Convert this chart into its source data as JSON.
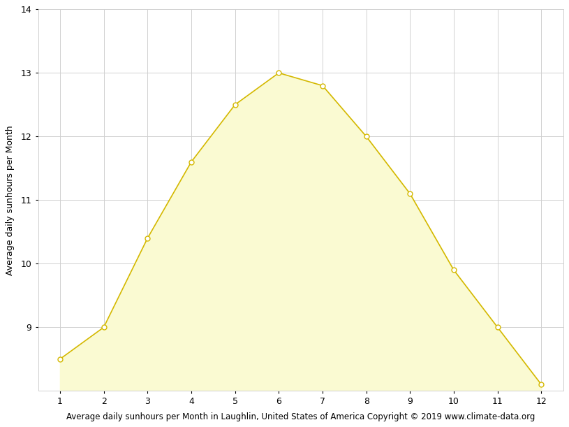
{
  "x": [
    1,
    2,
    3,
    4,
    5,
    6,
    7,
    8,
    9,
    10,
    11,
    12
  ],
  "y": [
    8.5,
    9.0,
    10.4,
    11.6,
    12.5,
    13.0,
    12.8,
    12.0,
    11.1,
    9.9,
    9.0,
    8.1
  ],
  "fill_color": "#fafad2",
  "line_color": "#d4b800",
  "marker_face_color": "#ffffff",
  "marker_edge_color": "#d4b800",
  "ylabel": "Average daily sunhours per Month",
  "xlabel": "Average daily sunhours per Month in Laughlin, United States of America Copyright © 2019 www.climate-data.org",
  "ylim_bottom": 8.0,
  "ylim_top": 14.0,
  "xlim_left": 0.5,
  "xlim_right": 12.5,
  "yticks": [
    9,
    10,
    11,
    12,
    13,
    14
  ],
  "xticks": [
    1,
    2,
    3,
    4,
    5,
    6,
    7,
    8,
    9,
    10,
    11,
    12
  ],
  "plot_background": "#ffffff",
  "grid_color": "#d0d0d0",
  "axis_fontsize": 9,
  "xlabel_fontsize": 8.5,
  "marker_size": 5,
  "linewidth": 1.2
}
